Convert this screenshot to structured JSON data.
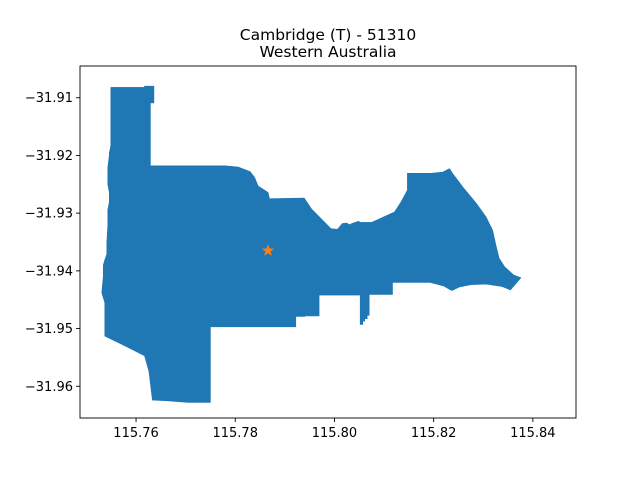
{
  "chart_data": {
    "type": "map",
    "title": [
      "Cambridge (T) - 51310",
      "Western Australia"
    ],
    "xlabel": "",
    "ylabel": "",
    "xlim": [
      115.7487,
      115.8487
    ],
    "ylim": [
      -31.9655,
      -31.9045
    ],
    "x_ticks": [
      {
        "value": 115.76,
        "label": "115.76"
      },
      {
        "value": 115.78,
        "label": "115.78"
      },
      {
        "value": 115.8,
        "label": "115.80"
      },
      {
        "value": 115.82,
        "label": "115.82"
      },
      {
        "value": 115.84,
        "label": "115.84"
      }
    ],
    "y_ticks": [
      {
        "value": -31.91,
        "label": "−31.91"
      },
      {
        "value": -31.92,
        "label": "−31.92"
      },
      {
        "value": -31.93,
        "label": "−31.93"
      },
      {
        "value": -31.94,
        "label": "−31.94"
      },
      {
        "value": -31.95,
        "label": "−31.95"
      },
      {
        "value": -31.96,
        "label": "−31.96"
      }
    ],
    "grid": false,
    "region_color": "#1f77b4",
    "marker_color": "#ff7f0e",
    "marker": "star",
    "centroid": [
      115.7866,
      -31.9365
    ],
    "boundary": [
      [
        115.7549,
        -31.9082
      ],
      [
        115.7617,
        -31.9082
      ],
      [
        115.7617,
        -31.908
      ],
      [
        115.7636,
        -31.908
      ],
      [
        115.7636,
        -31.9109
      ],
      [
        115.7629,
        -31.9109
      ],
      [
        115.7629,
        -31.9218
      ],
      [
        115.778,
        -31.9218
      ],
      [
        115.7806,
        -31.922
      ],
      [
        115.783,
        -31.9228
      ],
      [
        115.7839,
        -31.9238
      ],
      [
        115.7846,
        -31.9253
      ],
      [
        115.7857,
        -31.9259
      ],
      [
        115.7866,
        -31.9264
      ],
      [
        115.7869,
        -31.9275
      ],
      [
        115.7939,
        -31.9274
      ],
      [
        115.7954,
        -31.9293
      ],
      [
        115.7977,
        -31.9313
      ],
      [
        115.7993,
        -31.9327
      ],
      [
        115.8006,
        -31.9328
      ],
      [
        115.8016,
        -31.9318
      ],
      [
        115.8024,
        -31.9317
      ],
      [
        115.8031,
        -31.932
      ],
      [
        115.8035,
        -31.9318
      ],
      [
        115.8049,
        -31.9314
      ],
      [
        115.8051,
        -31.9316
      ],
      [
        115.8075,
        -31.9316
      ],
      [
        115.8098,
        -31.9307
      ],
      [
        115.8121,
        -31.9298
      ],
      [
        115.8134,
        -31.9281
      ],
      [
        115.8147,
        -31.926
      ],
      [
        115.8147,
        -31.9231
      ],
      [
        115.8194,
        -31.9231
      ],
      [
        115.8218,
        -31.9229
      ],
      [
        115.8232,
        -31.9223
      ],
      [
        115.8238,
        -31.9231
      ],
      [
        115.826,
        -31.9256
      ],
      [
        115.8286,
        -31.9283
      ],
      [
        115.8306,
        -31.9307
      ],
      [
        115.8319,
        -31.933
      ],
      [
        115.8326,
        -31.9357
      ],
      [
        115.8332,
        -31.9378
      ],
      [
        115.8343,
        -31.9393
      ],
      [
        115.8361,
        -31.9407
      ],
      [
        115.8376,
        -31.9412
      ],
      [
        115.8355,
        -31.9433
      ],
      [
        115.8337,
        -31.9427
      ],
      [
        115.8306,
        -31.9423
      ],
      [
        115.8275,
        -31.9424
      ],
      [
        115.8252,
        -31.9428
      ],
      [
        115.8237,
        -31.9434
      ],
      [
        115.8232,
        -31.9432
      ],
      [
        115.822,
        -31.9426
      ],
      [
        115.8193,
        -31.942
      ],
      [
        115.8156,
        -31.942
      ],
      [
        115.8117,
        -31.942
      ],
      [
        115.8117,
        -31.9441
      ],
      [
        115.807,
        -31.9441
      ],
      [
        115.807,
        -31.9477
      ],
      [
        115.8066,
        -31.9477
      ],
      [
        115.8066,
        -31.9483
      ],
      [
        115.8061,
        -31.9483
      ],
      [
        115.8061,
        -31.9487
      ],
      [
        115.8057,
        -31.9487
      ],
      [
        115.8057,
        -31.9493
      ],
      [
        115.8052,
        -31.9493
      ],
      [
        115.8052,
        -31.9442
      ],
      [
        115.7969,
        -31.9442
      ],
      [
        115.7969,
        -31.9478
      ],
      [
        115.794,
        -31.9478
      ],
      [
        115.794,
        -31.9479
      ],
      [
        115.7922,
        -31.9479
      ],
      [
        115.7922,
        -31.9497
      ],
      [
        115.786,
        -31.9497
      ],
      [
        115.786,
        -31.9497
      ],
      [
        115.7808,
        -31.9497
      ],
      [
        115.775,
        -31.9497
      ],
      [
        115.775,
        -31.9628
      ],
      [
        115.7706,
        -31.9628
      ],
      [
        115.766,
        -31.9625
      ],
      [
        115.7633,
        -31.9624
      ],
      [
        115.7626,
        -31.9574
      ],
      [
        115.7617,
        -31.9547
      ],
      [
        115.7573,
        -31.9528
      ],
      [
        115.7537,
        -31.9513
      ],
      [
        115.7537,
        -31.9455
      ],
      [
        115.7531,
        -31.9438
      ],
      [
        115.7534,
        -31.9409
      ],
      [
        115.7534,
        -31.939
      ],
      [
        115.7537,
        -31.9381
      ],
      [
        115.7541,
        -31.9371
      ],
      [
        115.7541,
        -31.9351
      ],
      [
        115.7543,
        -31.9321
      ],
      [
        115.7543,
        -31.9294
      ],
      [
        115.7546,
        -31.9281
      ],
      [
        115.7546,
        -31.9264
      ],
      [
        115.7543,
        -31.925
      ],
      [
        115.7543,
        -31.9221
      ],
      [
        115.7546,
        -31.92
      ],
      [
        115.7546,
        -31.9195
      ],
      [
        115.7548,
        -31.9188
      ],
      [
        115.7549,
        -31.9182
      ],
      [
        115.7549,
        -31.914
      ],
      [
        115.7549,
        -31.9082
      ]
    ]
  }
}
